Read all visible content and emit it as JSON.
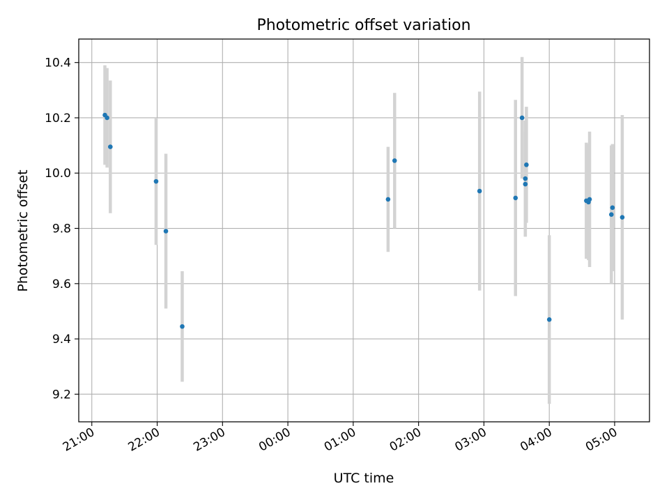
{
  "chart_data": {
    "type": "scatter",
    "title": "Photometric offset variation",
    "xlabel": "UTC time",
    "ylabel": "Photometric offset",
    "xlim": [
      "2000-01-01T20:48",
      "2000-01-02T05:32"
    ],
    "ylim": [
      9.1,
      10.485
    ],
    "x_ticks": [
      {
        "t": "2000-01-01T21:00",
        "label": "21:00"
      },
      {
        "t": "2000-01-01T22:00",
        "label": "22:00"
      },
      {
        "t": "2000-01-01T23:00",
        "label": "23:00"
      },
      {
        "t": "2000-01-02T00:00",
        "label": "00:00"
      },
      {
        "t": "2000-01-02T01:00",
        "label": "01:00"
      },
      {
        "t": "2000-01-02T02:00",
        "label": "02:00"
      },
      {
        "t": "2000-01-02T03:00",
        "label": "03:00"
      },
      {
        "t": "2000-01-02T04:00",
        "label": "04:00"
      },
      {
        "t": "2000-01-02T05:00",
        "label": "05:00"
      }
    ],
    "y_ticks": [
      {
        "v": 9.2,
        "label": "9.2"
      },
      {
        "v": 9.4,
        "label": "9.4"
      },
      {
        "v": 9.6,
        "label": "9.6"
      },
      {
        "v": 9.8,
        "label": "9.8"
      },
      {
        "v": 10.0,
        "label": "10.0"
      },
      {
        "v": 10.2,
        "label": "10.2"
      },
      {
        "v": 10.4,
        "label": "10.4"
      }
    ],
    "grid": true,
    "marker_color": "#1f77b4",
    "errorbar_color": "#d3d3d3",
    "points": [
      {
        "t": "2000-01-01T21:12",
        "y": 10.21,
        "err": 0.18
      },
      {
        "t": "2000-01-01T21:14",
        "y": 10.2,
        "err": 0.18
      },
      {
        "t": "2000-01-01T21:17",
        "y": 10.095,
        "err": 0.24
      },
      {
        "t": "2000-01-01T21:59",
        "y": 9.97,
        "err": 0.23
      },
      {
        "t": "2000-01-01T22:08",
        "y": 9.79,
        "err": 0.28
      },
      {
        "t": "2000-01-01T22:23",
        "y": 9.445,
        "err": 0.2
      },
      {
        "t": "2000-01-02T01:32",
        "y": 9.905,
        "err": 0.19
      },
      {
        "t": "2000-01-02T01:38",
        "y": 10.045,
        "err": 0.245
      },
      {
        "t": "2000-01-02T02:56",
        "y": 9.935,
        "err": 0.36
      },
      {
        "t": "2000-01-02T03:29",
        "y": 9.91,
        "err": 0.355
      },
      {
        "t": "2000-01-02T03:35",
        "y": 10.2,
        "err": 0.22
      },
      {
        "t": "2000-01-02T03:38",
        "y": 9.98,
        "err": 0.21
      },
      {
        "t": "2000-01-02T03:38",
        "y": 9.96,
        "err": 0.19
      },
      {
        "t": "2000-01-02T03:39",
        "y": 10.03,
        "err": 0.21
      },
      {
        "t": "2000-01-02T04:00",
        "y": 9.47,
        "err": 0.305
      },
      {
        "t": "2000-01-02T04:34",
        "y": 9.9,
        "err": 0.21
      },
      {
        "t": "2000-01-02T04:36",
        "y": 9.895,
        "err": 0.21
      },
      {
        "t": "2000-01-02T04:37",
        "y": 9.905,
        "err": 0.245
      },
      {
        "t": "2000-01-02T04:57",
        "y": 9.85,
        "err": 0.25
      },
      {
        "t": "2000-01-02T04:58",
        "y": 9.875,
        "err": 0.23
      },
      {
        "t": "2000-01-02T05:07",
        "y": 9.84,
        "err": 0.37
      }
    ]
  }
}
